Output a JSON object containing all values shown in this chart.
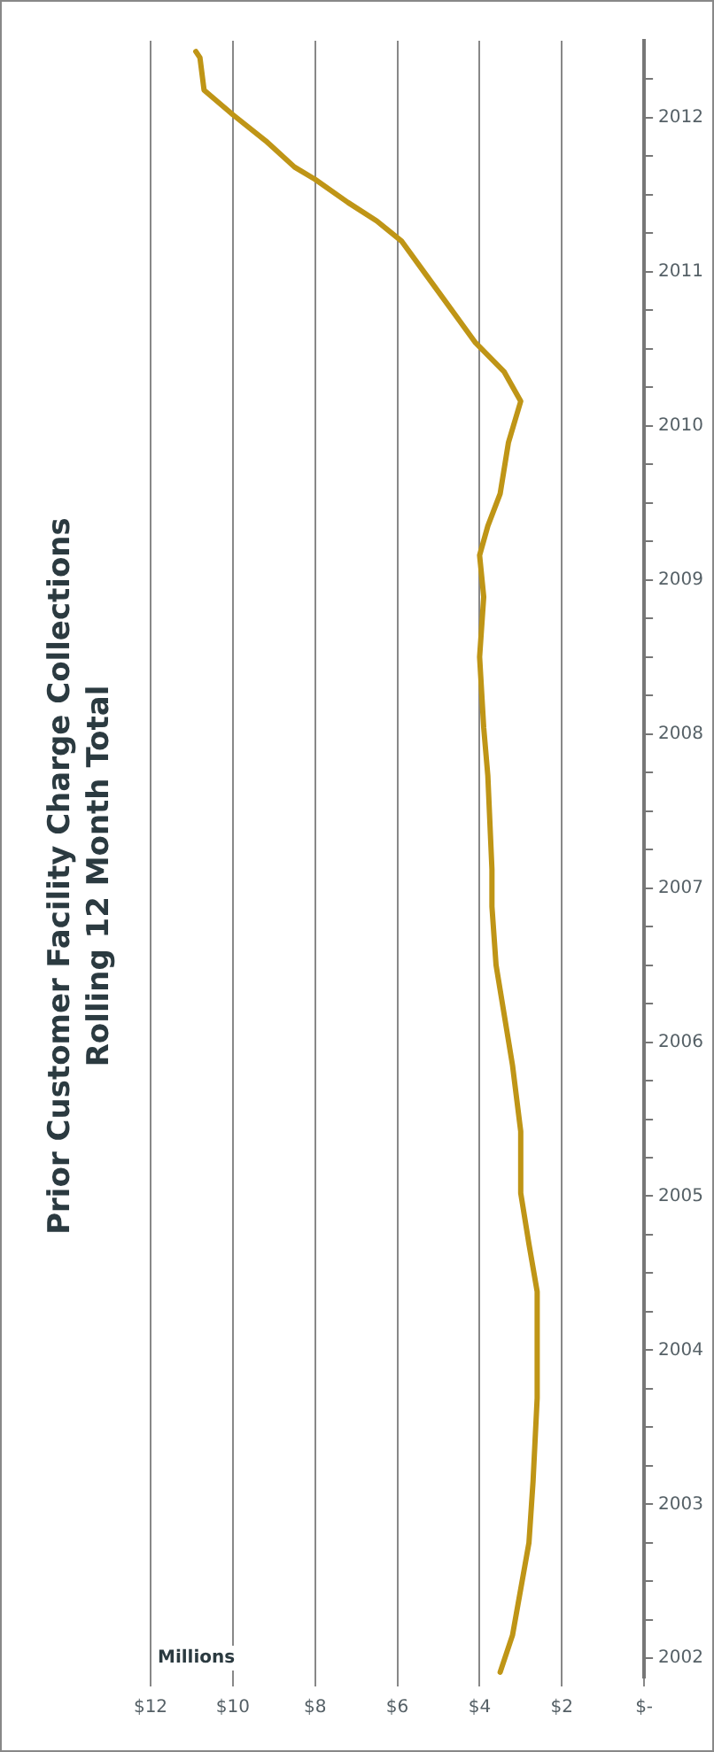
{
  "chart_data": {
    "type": "line",
    "title": "Prior Customer Facility Charge Collections",
    "subtitle": "Rolling 12 Month Total",
    "xlabel": "Millions",
    "orientation": "horizontal",
    "series": [
      {
        "color": "#bf9516",
        "x": [
          2001.91,
          2002.15,
          2002.75,
          2003.15,
          2003.69,
          2004.11,
          2004.38,
          2004.69,
          2005.02,
          2005.42,
          2005.85,
          2006.5,
          2006.88,
          2007.12,
          2007.73,
          2008.04,
          2008.5,
          2008.89,
          2009.16,
          2009.35,
          2009.56,
          2009.89,
          2010.16,
          2010.35,
          2010.54,
          2010.98,
          2011.2,
          2011.33,
          2011.45,
          2011.6,
          2011.68,
          2011.85,
          2012.02,
          2012.18,
          2012.39,
          2012.43
        ],
        "values": [
          3.5,
          3.2,
          2.8,
          2.7,
          2.6,
          2.6,
          2.6,
          2.8,
          3.0,
          3.0,
          3.2,
          3.6,
          3.7,
          3.7,
          3.8,
          3.9,
          4.0,
          3.9,
          4.0,
          3.8,
          3.5,
          3.3,
          3.0,
          3.4,
          4.1,
          5.3,
          5.9,
          6.5,
          7.2,
          8.0,
          8.5,
          9.2,
          10.0,
          10.7,
          10.8,
          10.9
        ]
      }
    ],
    "ylim": [
      2001.875,
      2012.5
    ],
    "yticks": [
      {
        "value": 2002,
        "label": "2002"
      },
      {
        "value": 2002.25,
        "label": null
      },
      {
        "value": 2002.5,
        "label": null
      },
      {
        "value": 2002.75,
        "label": null
      },
      {
        "value": 2003,
        "label": "2003"
      },
      {
        "value": 2003.25,
        "label": null
      },
      {
        "value": 2003.5,
        "label": null
      },
      {
        "value": 2003.75,
        "label": null
      },
      {
        "value": 2004,
        "label": "2004"
      },
      {
        "value": 2004.25,
        "label": null
      },
      {
        "value": 2004.5,
        "label": null
      },
      {
        "value": 2004.75,
        "label": null
      },
      {
        "value": 2005,
        "label": "2005"
      },
      {
        "value": 2005.25,
        "label": null
      },
      {
        "value": 2005.5,
        "label": null
      },
      {
        "value": 2005.75,
        "label": null
      },
      {
        "value": 2006,
        "label": "2006"
      },
      {
        "value": 2006.25,
        "label": null
      },
      {
        "value": 2006.5,
        "label": null
      },
      {
        "value": 2006.75,
        "label": null
      },
      {
        "value": 2007,
        "label": "2007"
      },
      {
        "value": 2007.25,
        "label": null
      },
      {
        "value": 2007.5,
        "label": null
      },
      {
        "value": 2007.75,
        "label": null
      },
      {
        "value": 2008,
        "label": "2008"
      },
      {
        "value": 2008.25,
        "label": null
      },
      {
        "value": 2008.5,
        "label": null
      },
      {
        "value": 2008.75,
        "label": null
      },
      {
        "value": 2009,
        "label": "2009"
      },
      {
        "value": 2009.25,
        "label": null
      },
      {
        "value": 2009.5,
        "label": null
      },
      {
        "value": 2009.75,
        "label": null
      },
      {
        "value": 2010,
        "label": "2010"
      },
      {
        "value": 2010.25,
        "label": null
      },
      {
        "value": 2010.5,
        "label": null
      },
      {
        "value": 2010.75,
        "label": null
      },
      {
        "value": 2011,
        "label": "2011"
      },
      {
        "value": 2011.25,
        "label": null
      },
      {
        "value": 2011.5,
        "label": null
      },
      {
        "value": 2011.75,
        "label": null
      },
      {
        "value": 2012,
        "label": "2012"
      },
      {
        "value": 2012.25,
        "label": null
      }
    ],
    "xlim": [
      12,
      0
    ],
    "xticks": [
      {
        "value": 0,
        "label": "$-"
      },
      {
        "value": 2,
        "label": "$2"
      },
      {
        "value": 4,
        "label": "$4"
      },
      {
        "value": 6,
        "label": "$6"
      },
      {
        "value": 8,
        "label": "$8"
      },
      {
        "value": 10,
        "label": "$10"
      },
      {
        "value": 12,
        "label": "$12"
      }
    ],
    "grid": "x",
    "legend": false,
    "marker": "none",
    "line_style": "solid"
  }
}
